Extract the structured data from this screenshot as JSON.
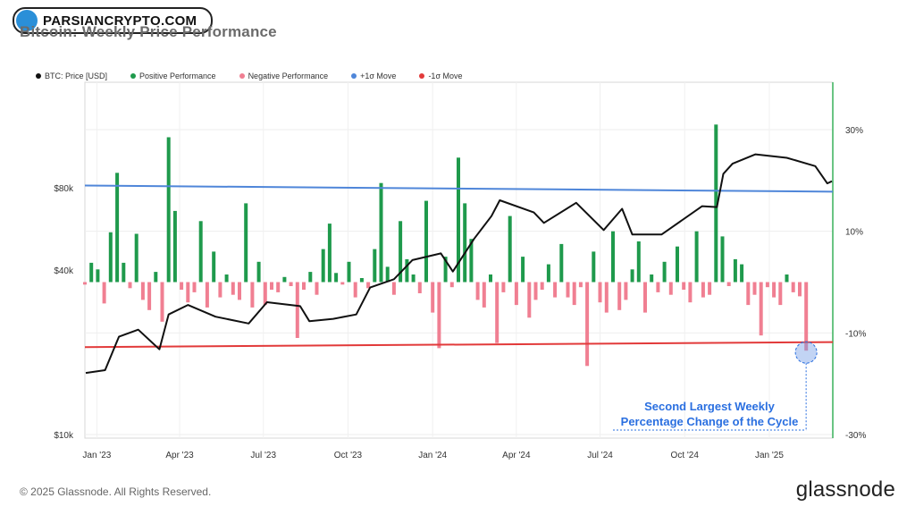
{
  "header": {
    "title": "Bitcoin: Weekly Price Performance",
    "badge_text": "PARSIANCRYPTO.COM"
  },
  "legend": [
    {
      "label": "BTC: Price [USD]",
      "color": "#111111"
    },
    {
      "label": "Positive Performance",
      "color": "#1f9a4c"
    },
    {
      "label": "Negative Performance",
      "color": "#f07f92"
    },
    {
      "label": "+1σ Move",
      "color": "#4f86d9"
    },
    {
      "label": "-1σ Move",
      "color": "#e23a3a"
    }
  ],
  "footer": {
    "copyright": "© 2025 Glassnode. All Rights Reserved.",
    "brand": "glassnode"
  },
  "chart_data": {
    "type": "bar",
    "title": "Bitcoin: Weekly Price Performance",
    "x_tick_labels": [
      "Jan '23",
      "Apr '23",
      "Jul '23",
      "Oct '23",
      "Jan '24",
      "Apr '24",
      "Jul '24",
      "Oct '24",
      "Jan '25"
    ],
    "x_range": [
      "2022-12-19",
      "2025-03-11"
    ],
    "left_axis": {
      "label": "",
      "scale": "log",
      "ticks": [
        "$10k",
        "$40k",
        "$80k"
      ],
      "tick_values": [
        10000,
        40000,
        80000
      ]
    },
    "right_axis": {
      "label": "",
      "ticks": [
        "30%",
        "10%",
        "-10%",
        "-30%"
      ],
      "tick_values": [
        30,
        10,
        -10,
        -30
      ],
      "ylim": [
        -30,
        30
      ]
    },
    "plus_sigma_line": {
      "name": "+1σ Move",
      "start": 19.0,
      "end": 17.8
    },
    "minus_sigma_line": {
      "name": "-1σ Move",
      "start": -12.8,
      "end": -11.8
    },
    "btc_price": {
      "name": "BTC: Price [USD]",
      "dates": [
        "2022-12-20",
        "2023-01-10",
        "2023-01-25",
        "2023-02-15",
        "2023-03-10",
        "2023-03-20",
        "2023-04-10",
        "2023-05-10",
        "2023-06-15",
        "2023-07-05",
        "2023-08-10",
        "2023-08-20",
        "2023-09-15",
        "2023-10-10",
        "2023-10-25",
        "2023-11-20",
        "2023-12-10",
        "2024-01-10",
        "2024-01-23",
        "2024-02-15",
        "2024-03-05",
        "2024-03-14",
        "2024-04-20",
        "2024-05-01",
        "2024-06-05",
        "2024-07-05",
        "2024-07-25",
        "2024-08-05",
        "2024-09-06",
        "2024-10-20",
        "2024-11-05",
        "2024-11-12",
        "2024-11-22",
        "2024-12-17",
        "2025-01-20",
        "2025-02-20",
        "2025-03-05",
        "2025-03-10"
      ],
      "values": [
        16800,
        17200,
        22800,
        24200,
        20500,
        27500,
        29800,
        27000,
        25500,
        30500,
        29500,
        26000,
        26500,
        27500,
        34500,
        37000,
        43500,
        46000,
        39500,
        52000,
        63000,
        72000,
        65000,
        59500,
        70500,
        56000,
        67000,
        54000,
        54000,
        68500,
        68000,
        90000,
        98000,
        106000,
        103000,
        96000,
        83000,
        84500
      ]
    },
    "weekly_change_pct": {
      "start": "2022-12-19",
      "values": [
        -0.5,
        3.8,
        2.5,
        -4.2,
        9.8,
        21.5,
        3.8,
        -1.2,
        9.5,
        -3.5,
        -5.5,
        2.0,
        -7.8,
        28.5,
        14.0,
        -1.5,
        -4.0,
        -2.0,
        12.0,
        -5.0,
        6.0,
        -3.0,
        1.5,
        -2.5,
        -3.5,
        15.5,
        -5.0,
        4.0,
        -4.5,
        -1.5,
        -2.0,
        1.0,
        -0.8,
        -11.0,
        -1.5,
        2.0,
        -2.5,
        6.5,
        11.5,
        1.8,
        -0.5,
        4.0,
        -3.0,
        0.8,
        -1.2,
        6.5,
        19.5,
        3.0,
        -2.5,
        12.0,
        4.5,
        1.5,
        -2.2,
        16.0,
        -6.0,
        -13.0,
        5.0,
        -1.0,
        24.5,
        15.5,
        8.5,
        -3.5,
        -5.0,
        1.5,
        -12.0,
        -2.0,
        13.0,
        -4.5,
        5.0,
        -7.0,
        -3.5,
        -1.5,
        3.5,
        -3.0,
        7.5,
        -3.0,
        -4.5,
        -1.0,
        -16.5,
        6.0,
        -4.0,
        -6.0,
        10.0,
        -5.5,
        -3.5,
        2.5,
        8.0,
        -6.0,
        1.5,
        -2.0,
        4.0,
        -2.5,
        7.0,
        -1.5,
        -4.0,
        10.0,
        -3.0,
        -2.5,
        31.0,
        9.0,
        -0.8,
        4.5,
        3.5,
        -4.5,
        -2.5,
        -10.5,
        -1.0,
        -3.0,
        -4.5,
        1.5,
        -2.0,
        -2.8,
        -13.5
      ]
    },
    "annotation": {
      "text_line1": "Second Largest Weekly",
      "text_line2": "Percentage Change of the Cycle",
      "color": "#2a6fe0"
    }
  }
}
